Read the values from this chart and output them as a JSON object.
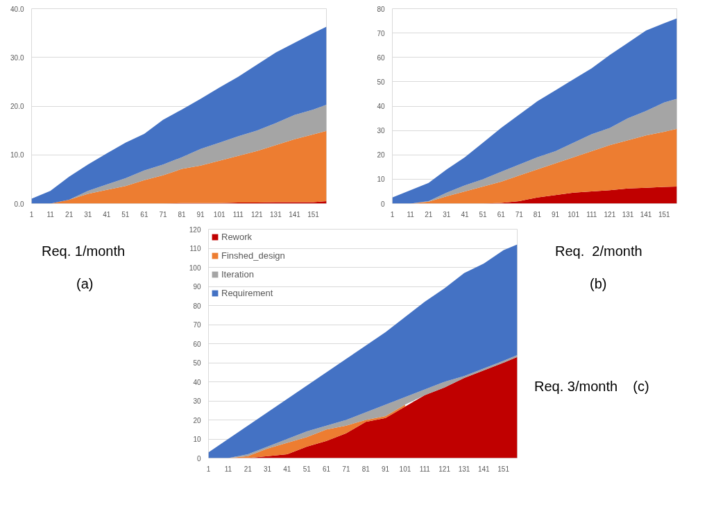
{
  "chart_data": [
    {
      "type": "area",
      "stacked": true,
      "grid": "y",
      "annotations": [
        "Req. 1/month",
        "(a)"
      ],
      "x": [
        1,
        11,
        21,
        31,
        41,
        51,
        61,
        71,
        81,
        91,
        101,
        111,
        121,
        131,
        141,
        151,
        158
      ],
      "xlim": [
        1,
        158
      ],
      "xticks": [
        1,
        11,
        21,
        31,
        41,
        51,
        61,
        71,
        81,
        91,
        101,
        111,
        121,
        131,
        141,
        151
      ],
      "ylim": [
        0,
        40
      ],
      "yticks": [
        {
          "value": 0,
          "label": "0.0"
        },
        {
          "value": 10,
          "label": "10.0"
        },
        {
          "value": 20,
          "label": "20.0"
        },
        {
          "value": 30,
          "label": "30.0"
        },
        {
          "value": 40,
          "label": "40.0"
        }
      ],
      "series": [
        {
          "color": "#c00000",
          "values": [
            0,
            0,
            0,
            0,
            0,
            0,
            0,
            0,
            0.1,
            0.1,
            0.1,
            0.2,
            0.2,
            0.3,
            0.3,
            0.3,
            0.5
          ]
        },
        {
          "color": "#ed7d31",
          "values": [
            0,
            0,
            0.8,
            2.0,
            2.8,
            3.6,
            4.8,
            5.8,
            7.0,
            7.7,
            8.7,
            9.6,
            10.6,
            11.7,
            12.9,
            13.9,
            14.4
          ]
        },
        {
          "color": "#a5a5a5",
          "values": [
            0,
            0,
            0,
            0.6,
            1.1,
            1.6,
            2.0,
            2.2,
            2.4,
            3.4,
            3.7,
            4.0,
            4.2,
            4.5,
            5.0,
            5.1,
            5.4
          ]
        },
        {
          "color": "#4472c4",
          "values": [
            1.0,
            2.6,
            4.7,
            5.4,
            6.4,
            7.3,
            7.5,
            9.2,
            9.8,
            10.3,
            11.3,
            12.2,
            13.5,
            14.5,
            14.8,
            15.7,
            16.0
          ]
        }
      ]
    },
    {
      "type": "area",
      "stacked": true,
      "grid": "y",
      "annotations": [
        "Req.  2/month",
        "(b)"
      ],
      "x": [
        1,
        11,
        21,
        31,
        41,
        51,
        61,
        71,
        81,
        91,
        101,
        111,
        121,
        131,
        141,
        151,
        158
      ],
      "xlim": [
        1,
        158
      ],
      "xticks": [
        1,
        11,
        21,
        31,
        41,
        51,
        61,
        71,
        81,
        91,
        101,
        111,
        121,
        131,
        141,
        151
      ],
      "ylim": [
        0,
        80
      ],
      "yticks": [
        0,
        10,
        20,
        30,
        40,
        50,
        60,
        70,
        80
      ],
      "series": [
        {
          "color": "#c00000",
          "values": [
            0,
            0,
            0,
            0,
            0,
            0,
            0.3,
            1,
            2.5,
            3.5,
            4.5,
            5,
            5.5,
            6.2,
            6.5,
            6.8,
            7
          ]
        },
        {
          "color": "#ed7d31",
          "values": [
            0,
            0,
            0.8,
            3,
            5,
            7,
            8.7,
            10.5,
            11.5,
            13,
            14.5,
            16.5,
            18.5,
            19.8,
            21.5,
            22.7,
            23.7
          ]
        },
        {
          "color": "#a5a5a5",
          "values": [
            0,
            0,
            0.2,
            1.5,
            2.5,
            3,
            4,
            4.5,
            5,
            5,
            6,
            7,
            7,
            9,
            10,
            12,
            12.3
          ]
        },
        {
          "color": "#4472c4",
          "values": [
            2.5,
            5.5,
            7.5,
            9.5,
            11.5,
            15,
            18,
            20.5,
            23,
            25,
            26,
            27,
            30,
            31,
            33,
            32.5,
            33
          ]
        }
      ]
    },
    {
      "type": "area",
      "stacked": true,
      "grid": "y",
      "legend": "top left",
      "annotations": [
        "Req. 3/month",
        "(c)"
      ],
      "x": [
        1,
        11,
        21,
        31,
        41,
        51,
        61,
        71,
        81,
        91,
        101,
        111,
        121,
        131,
        141,
        151,
        158
      ],
      "xlim": [
        1,
        158
      ],
      "xticks": [
        1,
        11,
        21,
        31,
        41,
        51,
        61,
        71,
        81,
        91,
        101,
        111,
        121,
        131,
        141,
        151
      ],
      "ylim": [
        0,
        120
      ],
      "yticks": [
        0,
        10,
        20,
        30,
        40,
        50,
        60,
        70,
        80,
        90,
        100,
        110,
        120
      ],
      "series": [
        {
          "name": "Rework",
          "color": "#c00000",
          "values": [
            0,
            0,
            0,
            1,
            2,
            6,
            9,
            13,
            19,
            21,
            27,
            33,
            37,
            42,
            46,
            50,
            53
          ]
        },
        {
          "name": "Finshed_design",
          "color": "#ed7d31",
          "values": [
            0,
            0,
            1,
            4,
            6,
            5,
            6,
            4,
            1,
            1,
            1,
            null,
            null,
            null,
            null,
            null,
            null
          ]
        },
        {
          "name": "Iteration",
          "color": "#a5a5a5",
          "values": [
            0,
            0,
            1,
            1,
            2,
            3,
            2,
            3,
            4,
            6,
            4,
            3,
            3,
            1,
            1,
            1,
            1
          ]
        },
        {
          "name": "Requirement",
          "color": "#4472c4",
          "values": [
            3,
            10,
            15,
            18,
            21,
            24,
            28,
            32,
            35,
            38,
            42,
            46,
            49,
            54,
            55,
            58,
            58
          ]
        }
      ]
    }
  ]
}
